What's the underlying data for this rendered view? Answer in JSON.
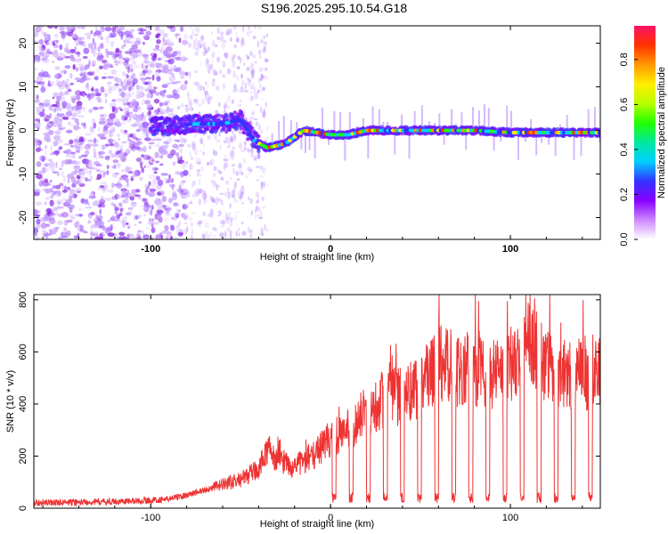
{
  "title": "S196.2025.295.10.54.G18",
  "chart_data": [
    {
      "type": "heatmap",
      "xlabel": "Height of straight line (km)",
      "ylabel": "Frequency (Hz)",
      "xlim": [
        -165,
        150
      ],
      "ylim": [
        -25,
        24
      ],
      "xticks": [
        -100,
        0,
        100
      ],
      "yticks": [
        -20,
        -10,
        0,
        10,
        20
      ],
      "ridge": [
        {
          "x": -90,
          "f": 1.0
        },
        {
          "x": -75,
          "f": 1.5
        },
        {
          "x": -60,
          "f": 1.5
        },
        {
          "x": -50,
          "f": 2.5
        },
        {
          "x": -42,
          "f": -2.5
        },
        {
          "x": -35,
          "f": -4.0
        },
        {
          "x": -25,
          "f": -3.0
        },
        {
          "x": -15,
          "f": 0.0
        },
        {
          "x": 0,
          "f": -1.0
        },
        {
          "x": 10,
          "f": -1.0
        },
        {
          "x": 20,
          "f": 0.0
        },
        {
          "x": 40,
          "f": 0.0
        },
        {
          "x": 60,
          "f": 0.0
        },
        {
          "x": 80,
          "f": 0.0
        },
        {
          "x": 100,
          "f": -0.5
        },
        {
          "x": 120,
          "f": -0.5
        },
        {
          "x": 150,
          "f": -0.5
        }
      ],
      "colorbar": {
        "label": "Normalized spectral amplitude",
        "range": [
          0,
          0.95
        ],
        "ticks": [
          0.0,
          0.2,
          0.4,
          0.6,
          0.8
        ],
        "tick_labels": [
          "0.0",
          "0.2",
          "0.4",
          "0.6",
          "0.8"
        ],
        "colors": [
          "#ffffff",
          "#cc88ff",
          "#8800ff",
          "#3333ff",
          "#00cfff",
          "#00e8a0",
          "#22ff00",
          "#b8ff00",
          "#ffee00",
          "#ff9900",
          "#ff3300",
          "#ff1166"
        ]
      }
    },
    {
      "type": "line",
      "xlabel": "Height of straight line (km)",
      "ylabel": "SNR (10 * v/v)",
      "xlim": [
        -165,
        150
      ],
      "ylim": [
        0,
        820
      ],
      "xticks": [
        -100,
        0,
        100
      ],
      "yticks": [
        0,
        200,
        400,
        600,
        800
      ],
      "color": "#ee3333",
      "series": [
        {
          "name": "SNR",
          "x": [
            -165,
            -120,
            -100,
            -90,
            -80,
            -70,
            -60,
            -50,
            -40,
            -35,
            -30,
            -20,
            -10,
            0,
            10,
            20,
            30,
            40,
            50,
            60,
            70,
            80,
            90,
            100,
            110,
            120,
            130,
            140,
            150
          ],
          "y": [
            20,
            25,
            30,
            35,
            50,
            70,
            90,
            110,
            150,
            230,
            180,
            160,
            200,
            270,
            290,
            380,
            420,
            430,
            480,
            560,
            520,
            540,
            510,
            560,
            620,
            560,
            520,
            500,
            540
          ]
        }
      ]
    }
  ]
}
